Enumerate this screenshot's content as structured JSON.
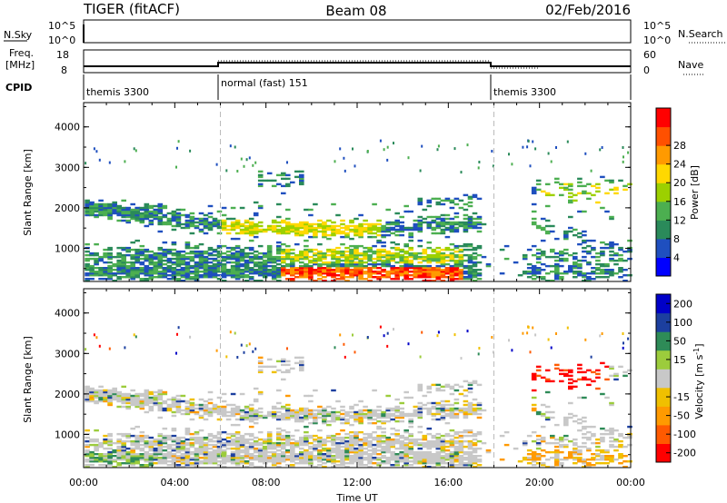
{
  "header": {
    "title": "TIGER (fitACF)",
    "beam": "Beam 08",
    "date": "02/Feb/2016"
  },
  "labels": {
    "nsky": "N.Sky",
    "nsearch": "N.Search",
    "freq": "Freq.",
    "freq_unit": "[MHz]",
    "nave": "Nave",
    "cpid": "CPID",
    "nsky_top": "10^5",
    "nsky_bot": "10^0",
    "freq_top": "18",
    "freq_bot": "8",
    "nave_top": "60",
    "nave_bot": "0"
  },
  "cpid_segments": [
    {
      "label": "themis 3300",
      "start_hour": 0
    },
    {
      "label": "normal (fast) 151",
      "start_hour": 6
    },
    {
      "label": "themis 3300",
      "start_hour": 18
    }
  ],
  "chart_data": [
    {
      "type": "heatmap",
      "name": "power",
      "ylabel": "Slant Range [km]",
      "xlim": [
        0,
        24
      ],
      "ylim": [
        180,
        4600
      ],
      "yticks": [
        "1000",
        "2000",
        "3000",
        "4000"
      ],
      "colorbar": {
        "label": "Power [dB]",
        "ticks": [
          "4",
          "8",
          "12",
          "16",
          "20",
          "24",
          "28"
        ]
      }
    },
    {
      "type": "heatmap",
      "name": "velocity",
      "ylabel": "Slant Range [km]",
      "xlabel": "Time UT",
      "xlim": [
        0,
        24
      ],
      "ylim": [
        180,
        4600
      ],
      "xticks": [
        "00:00",
        "04:00",
        "08:00",
        "12:00",
        "16:00",
        "20:00",
        "00:00"
      ],
      "yticks": [
        "1000",
        "2000",
        "3000",
        "4000"
      ],
      "colorbar": {
        "label": "Velocity [m s",
        "label_sup": "-1",
        "label_end": "]",
        "ticks": [
          "200",
          "100",
          "50",
          "15",
          "-15",
          "-50",
          "-100",
          "-200"
        ]
      }
    }
  ],
  "colors": {
    "power": [
      "#0000ff",
      "#1f4fbf",
      "#2a8a5a",
      "#4caf50",
      "#9cd000",
      "#ffd800",
      "#ff9a00",
      "#ff5000",
      "#ff0000"
    ],
    "velocity": [
      "#ff0000",
      "#ff5a00",
      "#ff9a00",
      "#f0c000",
      "#c8c8c8",
      "#9ccc3c",
      "#2e8b57",
      "#1c3f9f",
      "#0000c8"
    ]
  }
}
